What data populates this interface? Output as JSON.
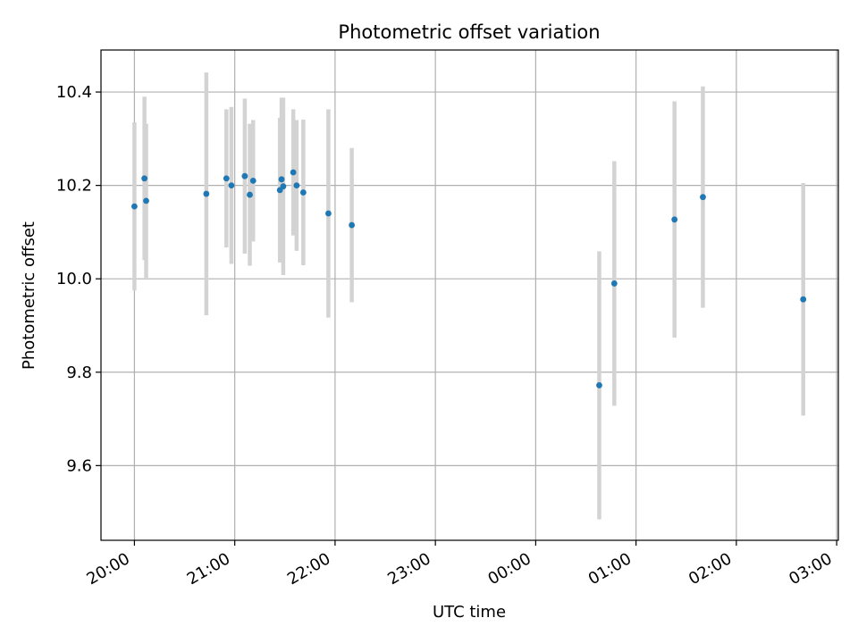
{
  "chart_data": {
    "type": "scatter",
    "title": "Photometric offset variation",
    "xlabel": "UTC time",
    "ylabel": "Photometric offset",
    "x_is_time": true,
    "x_ticks": [
      "20:00",
      "21:00",
      "22:00",
      "23:00",
      "00:00",
      "01:00",
      "02:00",
      "03:00"
    ],
    "y_ticks": [
      "9.6",
      "9.8",
      "10.0",
      "10.2",
      "10.4"
    ],
    "xlim": [
      "19:40",
      "03:01"
    ],
    "ylim": [
      9.44,
      10.49
    ],
    "grid": true,
    "colors": {
      "points": "#1f77b4",
      "errorbars": "#d3d3d3",
      "grid": "#b0b0b0"
    },
    "series": [
      {
        "points": [
          {
            "time": "20:00",
            "y": 10.155,
            "err": 0.18
          },
          {
            "time": "20:06",
            "y": 10.215,
            "err": 0.175
          },
          {
            "time": "20:07",
            "y": 10.167,
            "err": 0.165
          },
          {
            "time": "20:43",
            "y": 10.182,
            "err": 0.26
          },
          {
            "time": "20:55",
            "y": 10.215,
            "err": 0.148
          },
          {
            "time": "20:58",
            "y": 10.2,
            "err": 0.168
          },
          {
            "time": "21:06",
            "y": 10.22,
            "err": 0.166
          },
          {
            "time": "21:09",
            "y": 10.18,
            "err": 0.152
          },
          {
            "time": "21:11",
            "y": 10.21,
            "err": 0.13
          },
          {
            "time": "21:27",
            "y": 10.19,
            "err": 0.155
          },
          {
            "time": "21:28",
            "y": 10.213,
            "err": 0.175
          },
          {
            "time": "21:29",
            "y": 10.198,
            "err": 0.19
          },
          {
            "time": "21:35",
            "y": 10.228,
            "err": 0.135
          },
          {
            "time": "21:37",
            "y": 10.2,
            "err": 0.14
          },
          {
            "time": "21:41",
            "y": 10.185,
            "err": 0.156
          },
          {
            "time": "21:56",
            "y": 10.14,
            "err": 0.223
          },
          {
            "time": "22:10",
            "y": 10.115,
            "err": 0.165
          },
          {
            "time": "00:38",
            "y": 9.772,
            "err": 0.287
          },
          {
            "time": "00:47",
            "y": 9.99,
            "err": 0.262
          },
          {
            "time": "01:23",
            "y": 10.127,
            "err": 0.253
          },
          {
            "time": "01:40",
            "y": 10.175,
            "err": 0.237
          },
          {
            "time": "02:40",
            "y": 9.956,
            "err": 0.249
          }
        ]
      }
    ]
  }
}
